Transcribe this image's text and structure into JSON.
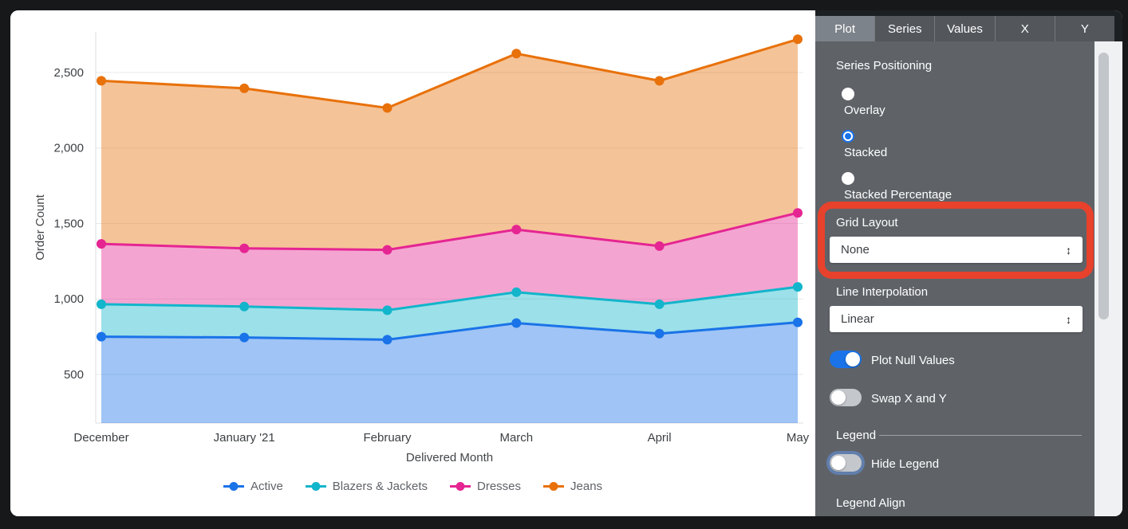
{
  "colors": {
    "accent_blue": "#1a73e8",
    "series_teal": "#12b5cb",
    "series_pink": "#e52592",
    "series_orange": "#e8710a",
    "highlight_red": "#e8412c",
    "panel_gray": "#5f6368"
  },
  "icons": {
    "select_updown_arrow": "↕"
  },
  "panel": {
    "tabs": [
      {
        "label": "Plot"
      },
      {
        "label": "Series"
      },
      {
        "label": "Values"
      },
      {
        "label": "X"
      },
      {
        "label": "Y"
      }
    ],
    "active_tab": "Plot",
    "series_positioning_label": "Series Positioning",
    "positioning_options": [
      {
        "label": "Overlay",
        "selected": false
      },
      {
        "label": "Stacked",
        "selected": true
      },
      {
        "label": "Stacked Percentage",
        "selected": false
      }
    ],
    "grid_layout_label": "Grid Layout",
    "grid_layout_value": "None",
    "line_interpolation_label": "Line Interpolation",
    "line_interpolation_value": "Linear",
    "plot_null_values_label": "Plot Null Values",
    "plot_null_values_on": true,
    "swap_label": "Swap X and Y",
    "swap_on": false,
    "legend_section_label": "Legend",
    "hide_legend_label": "Hide Legend",
    "hide_legend_on": false,
    "legend_align_label": "Legend Align"
  },
  "chart_data": {
    "type": "area",
    "stacking": "stacked",
    "title": "",
    "xlabel": "Delivered Month",
    "ylabel": "Order Count",
    "categories": [
      "December",
      "January '21",
      "February",
      "March",
      "April",
      "May"
    ],
    "x_day_offsets": [
      0,
      31,
      62,
      90,
      121,
      151
    ],
    "series": [
      {
        "name": "Active",
        "color": "#1a73e8",
        "values": [
          750,
          745,
          730,
          840,
          770,
          845
        ]
      },
      {
        "name": "Blazers & Jackets",
        "color": "#12b5cb",
        "values": [
          215,
          205,
          195,
          205,
          195,
          235
        ]
      },
      {
        "name": "Dresses",
        "color": "#e52592",
        "values": [
          400,
          385,
          400,
          415,
          385,
          490
        ]
      },
      {
        "name": "Jeans",
        "color": "#e8710a",
        "values": [
          1080,
          1060,
          940,
          1165,
          1095,
          1150
        ]
      }
    ],
    "stacked_totals": [
      [
        750,
        965,
        1365,
        2445
      ],
      [
        745,
        950,
        1335,
        2395
      ],
      [
        730,
        925,
        1325,
        2265
      ],
      [
        840,
        1045,
        1460,
        2625
      ],
      [
        770,
        965,
        1350,
        2445
      ],
      [
        845,
        1080,
        1570,
        2720
      ]
    ],
    "y_ticks": [
      500,
      1000,
      1500,
      2000,
      2500
    ],
    "y_axis_min": 178,
    "y_axis_max": 2769,
    "grid": true,
    "legend_position": "bottom"
  }
}
